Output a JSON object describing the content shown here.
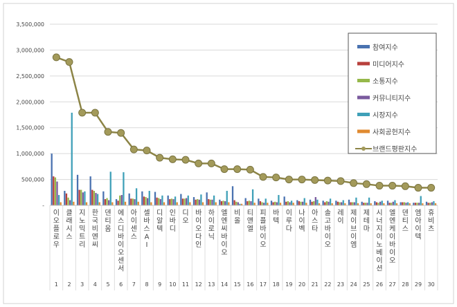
{
  "chart_data": {
    "type": "bar",
    "title": "",
    "xlabel": "",
    "ylabel": "",
    "ylim": [
      0,
      3500000
    ],
    "yticks": [
      "-",
      "500,000",
      "1,000,000",
      "1,500,000",
      "2,000,000",
      "2,500,000",
      "3,000,000",
      "3,500,000"
    ],
    "grid": true,
    "legend_position": "top-right",
    "categories": [
      "이오플로우",
      "클래시스",
      "지노믹트리",
      "한국비엔씨",
      "덴티움",
      "에스디바이오센서",
      "아이센스",
      "셀바스AI",
      "디알텍",
      "인바디",
      "디오",
      "바이오다인",
      "하이로닉",
      "엘엔씨바이오",
      "비올",
      "티앤엘",
      "피플바이오",
      "바텍",
      "이루다",
      "나이벡",
      "아스타",
      "솔고바이오",
      "레이",
      "제이브이엠",
      "제테마",
      "시너지이노베이션",
      "엘엔케이바이오",
      "덴티스",
      "엠아이텍",
      "휴비츠"
    ],
    "ranks": [
      "1",
      "2",
      "3",
      "4",
      "5",
      "6",
      "7",
      "8",
      "9",
      "10",
      "11",
      "12",
      "13",
      "14",
      "15",
      "16",
      "17",
      "18",
      "19",
      "20",
      "21",
      "22",
      "23",
      "24",
      "25",
      "26",
      "27",
      "28",
      "29",
      "30"
    ],
    "series": [
      {
        "name": "참여지수",
        "color": "#4a72b0",
        "type": "bar",
        "values": [
          1000000,
          280000,
          590000,
          560000,
          270000,
          120000,
          230000,
          270000,
          260000,
          190000,
          220000,
          160000,
          250000,
          110000,
          370000,
          140000,
          130000,
          90000,
          170000,
          100000,
          110000,
          90000,
          90000,
          110000,
          70000,
          80000,
          90000,
          60000,
          50000,
          70000
        ]
      },
      {
        "name": "미디어지수",
        "color": "#b8403c",
        "type": "bar",
        "values": [
          560000,
          230000,
          300000,
          300000,
          120000,
          90000,
          130000,
          170000,
          150000,
          120000,
          130000,
          110000,
          120000,
          80000,
          100000,
          80000,
          80000,
          60000,
          70000,
          80000,
          70000,
          60000,
          70000,
          60000,
          50000,
          60000,
          50000,
          60000,
          50000,
          50000
        ]
      },
      {
        "name": "소통지수",
        "color": "#96b84a",
        "type": "bar",
        "values": [
          540000,
          150000,
          300000,
          280000,
          140000,
          190000,
          130000,
          160000,
          140000,
          130000,
          130000,
          120000,
          110000,
          90000,
          70000,
          90000,
          60000,
          70000,
          80000,
          70000,
          80000,
          80000,
          60000,
          60000,
          50000,
          50000,
          50000,
          60000,
          50000,
          50000
        ]
      },
      {
        "name": "커뮤니티지수",
        "color": "#7a5a9e",
        "type": "bar",
        "values": [
          460000,
          100000,
          250000,
          240000,
          100000,
          200000,
          120000,
          140000,
          120000,
          120000,
          140000,
          110000,
          110000,
          80000,
          60000,
          80000,
          50000,
          60000,
          60000,
          70000,
          160000,
          70000,
          60000,
          60000,
          50000,
          70000,
          70000,
          50000,
          50000,
          60000
        ]
      },
      {
        "name": "시장지수",
        "color": "#3fa0b8",
        "type": "bar",
        "values": [
          200000,
          1790000,
          270000,
          220000,
          650000,
          640000,
          330000,
          280000,
          190000,
          170000,
          190000,
          210000,
          190000,
          280000,
          30000,
          310000,
          130000,
          200000,
          90000,
          140000,
          110000,
          130000,
          100000,
          150000,
          150000,
          90000,
          100000,
          60000,
          180000,
          80000
        ]
      },
      {
        "name": "사회공헌지수",
        "color": "#e08a30",
        "type": "bar",
        "values": [
          60000,
          70000,
          60000,
          60000,
          60000,
          70000,
          70000,
          60000,
          60000,
          60000,
          60000,
          60000,
          60000,
          60000,
          30000,
          50000,
          50000,
          50000,
          50000,
          50000,
          40000,
          40000,
          40000,
          40000,
          40000,
          40000,
          40000,
          40000,
          40000,
          40000
        ]
      },
      {
        "name": "브랜드평판지수",
        "color": "#8c8446",
        "type": "line",
        "values": [
          2860000,
          2770000,
          1790000,
          1790000,
          1420000,
          1400000,
          1080000,
          1060000,
          920000,
          890000,
          880000,
          810000,
          810000,
          700000,
          700000,
          690000,
          550000,
          540000,
          500000,
          500000,
          490000,
          480000,
          470000,
          430000,
          410000,
          380000,
          380000,
          370000,
          340000,
          340000
        ]
      }
    ]
  }
}
